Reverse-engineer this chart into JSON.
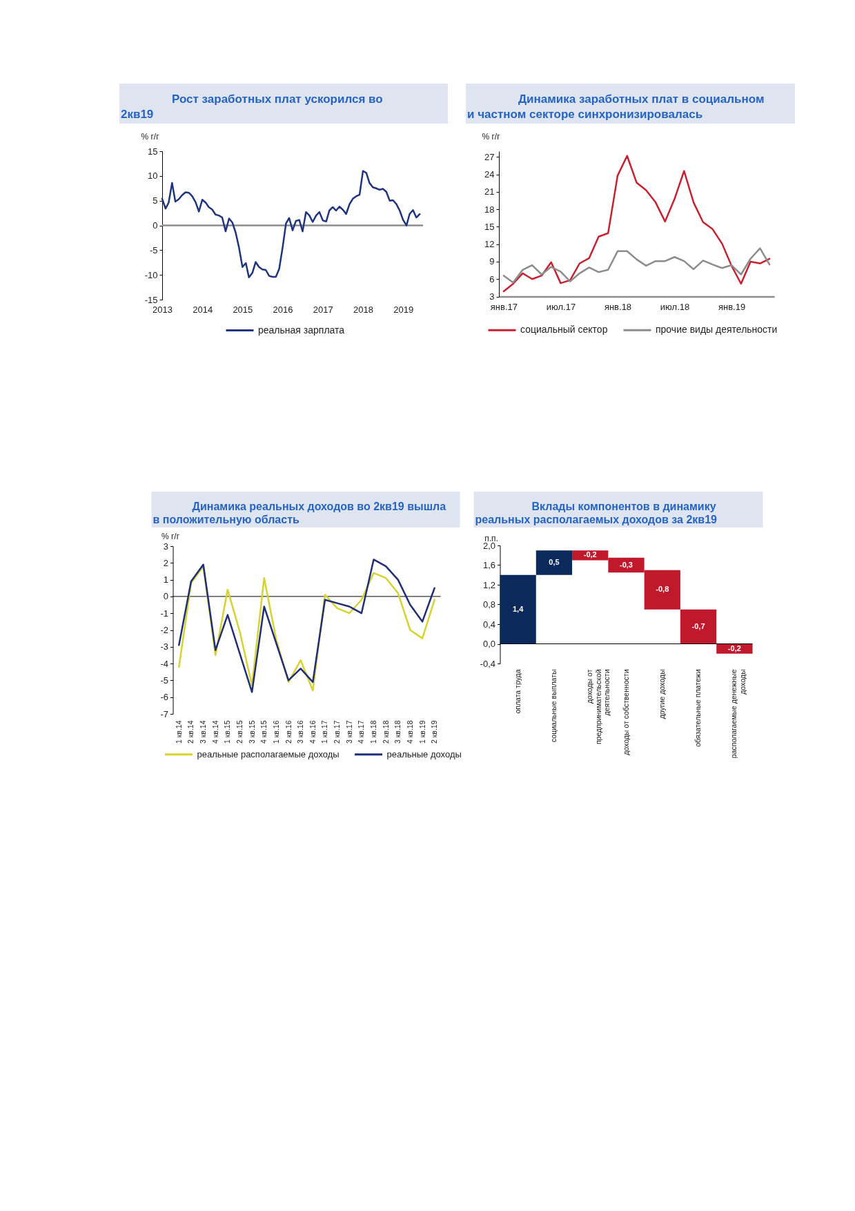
{
  "chart_data": [
    {
      "type": "line",
      "title": "Рост заработных плат ускорился во\n2кв19",
      "ylabel": "% г/г",
      "x": [
        "2013-01",
        "2013-02",
        "2013-03",
        "2013-04",
        "2013-05",
        "2013-06",
        "2013-07",
        "2013-08",
        "2013-09",
        "2013-10",
        "2013-11",
        "2013-12",
        "2014-01",
        "2014-02",
        "2014-03",
        "2014-04",
        "2014-05",
        "2014-06",
        "2014-07",
        "2014-08",
        "2014-09",
        "2014-10",
        "2014-11",
        "2014-12",
        "2015-01",
        "2015-02",
        "2015-03",
        "2015-04",
        "2015-05",
        "2015-06",
        "2015-07",
        "2015-08",
        "2015-09",
        "2015-10",
        "2015-11",
        "2015-12",
        "2016-01",
        "2016-02",
        "2016-03",
        "2016-04",
        "2016-05",
        "2016-06",
        "2016-07",
        "2016-08",
        "2016-09",
        "2016-10",
        "2016-11",
        "2016-12",
        "2017-01",
        "2017-02",
        "2017-03",
        "2017-04",
        "2017-05",
        "2017-06",
        "2017-07",
        "2017-08",
        "2017-09",
        "2017-10",
        "2017-11",
        "2017-12",
        "2018-01",
        "2018-02",
        "2018-03",
        "2018-04",
        "2018-05",
        "2018-06",
        "2018-07",
        "2018-08",
        "2018-09",
        "2018-10",
        "2018-11",
        "2018-12",
        "2019-01",
        "2019-02",
        "2019-03",
        "2019-04",
        "2019-05",
        "2019-06"
      ],
      "series": [
        {
          "name": "реальная зарплата",
          "color": "#1f3480",
          "values": [
            5.4,
            3.4,
            4.6,
            8.6,
            4.8,
            5.3,
            6.1,
            6.7,
            6.6,
            5.9,
            4.7,
            2.8,
            5.2,
            4.6,
            3.7,
            3.2,
            2.2,
            2.0,
            1.6,
            -1.2,
            1.4,
            0.6,
            -1.5,
            -4.5,
            -8.4,
            -7.6,
            -10.5,
            -9.6,
            -7.4,
            -8.4,
            -8.9,
            -9.0,
            -10.2,
            -10.4,
            -10.4,
            -8.8,
            -4.5,
            0.4,
            1.5,
            -1.0,
            0.9,
            1.1,
            -1.2,
            2.7,
            2.0,
            0.7,
            2.0,
            2.7,
            1.0,
            0.8,
            3.0,
            3.7,
            3.0,
            3.8,
            3.2,
            2.3,
            4.3,
            5.4,
            5.9,
            6.2,
            11.0,
            10.6,
            8.6,
            7.7,
            7.5,
            7.2,
            7.4,
            6.8,
            5.0,
            5.1,
            4.3,
            3.0,
            1.1,
            0.0,
            2.3,
            3.1,
            1.6,
            2.3
          ]
        }
      ],
      "xlim": [
        "2013-01",
        "2019-07"
      ],
      "xticks": [
        "2013",
        "2014",
        "2015",
        "2016",
        "2017",
        "2018",
        "2019"
      ],
      "ylim": [
        -15,
        15
      ],
      "yticks": [
        -15,
        -10,
        -5,
        0,
        5,
        10,
        15
      ],
      "ref_lines": [
        {
          "axis": "y",
          "value": 0,
          "color": "#8c8c8c"
        }
      ],
      "legend": "bottom"
    },
    {
      "type": "line",
      "title": "Динамика заработных плат в социальном\nи частном секторе синхронизировалась",
      "ylabel": "% г/г",
      "categories": [
        "янв.17",
        null,
        null,
        null,
        null,
        null,
        "июл.17",
        null,
        null,
        null,
        null,
        null,
        "янв.18",
        null,
        null,
        null,
        null,
        null,
        "июл.18",
        null,
        null,
        null,
        null,
        null,
        "янв.19",
        null,
        null,
        null,
        null
      ],
      "series": [
        {
          "name": "социальный сектор",
          "color": "#c8202f",
          "values": [
            3.9,
            5.2,
            7.0,
            6.0,
            6.6,
            8.9,
            5.3,
            5.8,
            8.7,
            9.6,
            13.3,
            13.9,
            23.8,
            27.2,
            22.6,
            21.3,
            19.2,
            15.9,
            19.8,
            24.6,
            19.2,
            15.8,
            14.6,
            12.1,
            8.3,
            5.2,
            9.0,
            8.7,
            9.5
          ]
        },
        {
          "name": "прочие виды деятельности",
          "color": "#8c8c8c",
          "values": [
            6.6,
            5.4,
            7.6,
            8.4,
            6.8,
            8.1,
            7.3,
            5.6,
            7.0,
            8.0,
            7.2,
            7.6,
            10.8,
            10.8,
            9.4,
            8.3,
            9.1,
            9.1,
            9.8,
            9.1,
            7.7,
            9.2,
            8.5,
            7.9,
            8.4,
            6.8,
            9.5,
            11.3,
            8.5
          ]
        }
      ],
      "ylim": [
        3,
        28
      ],
      "yticks": [
        3,
        6,
        9,
        12,
        15,
        18,
        21,
        24,
        27
      ],
      "legend": "bottom"
    },
    {
      "type": "line",
      "title": "Динамика реальных доходов во 2кв19 вышла\nв положительную область",
      "ylabel": "% г/г",
      "categories": [
        "1 кв.14",
        "2 кв.14",
        "3 кв.14",
        "4 кв.14",
        "1 кв.15",
        "2 кв.15",
        "3 кв.15",
        "4 кв.15",
        "1 кв.16",
        "2 кв.16",
        "3 кв.16",
        "4 кв.16",
        "1 кв.17",
        "2 кв.17",
        "3 кв.17",
        "4 кв.17",
        "1 кв.18",
        "2 кв.18",
        "3 кв.18",
        "4 кв.18",
        "1 кв.19",
        "2 кв.19"
      ],
      "series": [
        {
          "name": "реальные располагаемые доходы",
          "color": "#d6d22e",
          "values": [
            -4.2,
            0.8,
            1.8,
            -3.5,
            0.4,
            -2.1,
            -5.3,
            1.1,
            -2.6,
            -5.1,
            -3.8,
            -5.6,
            0.1,
            -0.7,
            -1.0,
            -0.2,
            1.4,
            1.1,
            0.2,
            -2.0,
            -2.5,
            -0.2
          ]
        },
        {
          "name": "реальные доходы",
          "color": "#1f2e78",
          "values": [
            -2.9,
            0.9,
            1.9,
            -3.2,
            -1.1,
            -3.4,
            -5.7,
            -0.6,
            -2.8,
            -5.0,
            -4.3,
            -5.1,
            -0.2,
            -0.4,
            -0.6,
            -1.0,
            2.2,
            1.8,
            1.0,
            -0.5,
            -1.5,
            0.5
          ]
        }
      ],
      "ylim": [
        -7,
        3
      ],
      "yticks": [
        -7,
        -6,
        -5,
        -4,
        -3,
        -2,
        -1,
        0,
        1,
        2,
        3
      ],
      "ref_lines": [
        {
          "axis": "y",
          "value": 0,
          "color": "#000000"
        }
      ],
      "legend": "bottom"
    },
    {
      "type": "bar",
      "title": "Вклады компонентов в динамику\nреальных располагаемых доходов за 2кв19",
      "ylabel": "п.п.",
      "categories": [
        "оплата труда",
        "социальные выплаты",
        "доходы от предпринимательской деятельности",
        "доходы от собственности",
        "другие доходы",
        "обязательные платежи",
        "располагаемые денежные доходы"
      ],
      "values": [
        1.4,
        0.5,
        -0.2,
        -0.3,
        -0.8,
        -0.7,
        -0.2
      ],
      "base": [
        0,
        1.4,
        1.9,
        1.75,
        1.5,
        0.7,
        0
      ],
      "colors": [
        "#0b2a5b",
        "#0b2a5b",
        "#c0192c",
        "#c0192c",
        "#c0192c",
        "#c0192c",
        "#c0192c"
      ],
      "value_labels": [
        "1,4",
        "0,5",
        "-0,2",
        "-0,3",
        "-0,8",
        "-0,7",
        "-0,2"
      ],
      "ylim": [
        -0.4,
        2.0
      ],
      "yticks": [
        {
          "value": -0.4,
          "label": "-0,4"
        },
        {
          "value": 0,
          "label": "0,0"
        },
        {
          "value": 0.4,
          "label": "0,4"
        },
        {
          "value": 0.8,
          "label": "0,8"
        },
        {
          "value": 1.2,
          "label": "1,2"
        },
        {
          "value": 1.6,
          "label": "1,6"
        },
        {
          "value": 2.0,
          "label": "2,0"
        }
      ],
      "ref_lines": [
        {
          "axis": "y",
          "value": 0,
          "color": "#000000"
        }
      ]
    }
  ]
}
